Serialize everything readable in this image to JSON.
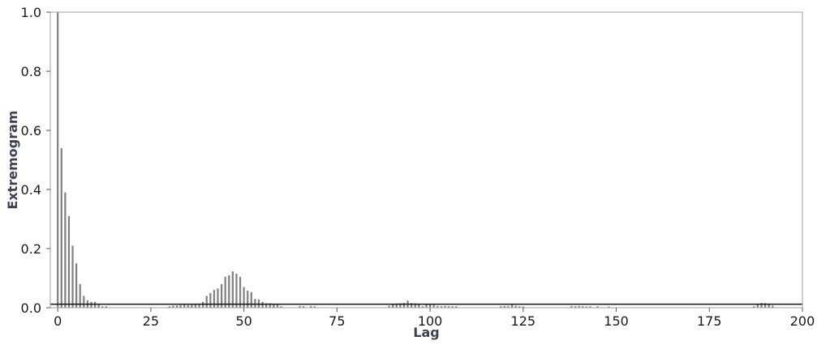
{
  "chart_data": {
    "type": "bar",
    "title": "",
    "xlabel": "Lag",
    "ylabel": "Extremogram",
    "xlim": [
      -2,
      200
    ],
    "ylim": [
      0,
      1.0
    ],
    "x_ticks": [
      0,
      25,
      50,
      75,
      100,
      125,
      150,
      175,
      200
    ],
    "y_ticks": [
      0.0,
      0.2,
      0.4,
      0.6,
      0.8,
      1.0
    ],
    "x_tick_labels": [
      "0",
      "25",
      "50",
      "75",
      "100",
      "125",
      "150",
      "175",
      "200"
    ],
    "y_tick_labels": [
      "0.0",
      "0.2",
      "0.4",
      "0.6",
      "0.8",
      "1.0"
    ],
    "grid": false,
    "threshold_line": 0.012,
    "bar_color": "#808080",
    "threshold_color": "#111111",
    "series": [
      {
        "lags": [
          0,
          1,
          2,
          3,
          4,
          5,
          6,
          7,
          8,
          9,
          10,
          11,
          12,
          13,
          30,
          31,
          32,
          33,
          34,
          35,
          36,
          37,
          38,
          39,
          40,
          41,
          42,
          43,
          44,
          45,
          46,
          47,
          48,
          49,
          50,
          51,
          52,
          53,
          54,
          55,
          56,
          57,
          58,
          59,
          60,
          65,
          66,
          68,
          69,
          89,
          90,
          91,
          92,
          93,
          94,
          95,
          96,
          97,
          98,
          99,
          100,
          101,
          102,
          103,
          104,
          105,
          106,
          107,
          119,
          120,
          121,
          122,
          123,
          124,
          125,
          138,
          139,
          140,
          141,
          142,
          143,
          145,
          148,
          187,
          188,
          189,
          190,
          191,
          192
        ],
        "values": [
          1.0,
          0.54,
          0.39,
          0.31,
          0.21,
          0.15,
          0.08,
          0.04,
          0.025,
          0.02,
          0.02,
          0.01,
          0.005,
          0.005,
          0.005,
          0.007,
          0.008,
          0.009,
          0.01,
          0.009,
          0.01,
          0.012,
          0.014,
          0.02,
          0.04,
          0.05,
          0.06,
          0.065,
          0.08,
          0.105,
          0.11,
          0.123,
          0.115,
          0.105,
          0.07,
          0.058,
          0.053,
          0.03,
          0.028,
          0.02,
          0.015,
          0.015,
          0.013,
          0.01,
          0.005,
          0.006,
          0.005,
          0.006,
          0.005,
          0.007,
          0.012,
          0.014,
          0.015,
          0.017,
          0.024,
          0.016,
          0.015,
          0.013,
          0.005,
          0.012,
          0.012,
          0.01,
          0.006,
          0.005,
          0.006,
          0.005,
          0.005,
          0.005,
          0.005,
          0.006,
          0.006,
          0.01,
          0.007,
          0.005,
          0.004,
          0.006,
          0.005,
          0.006,
          0.005,
          0.004,
          0.005,
          0.005,
          0.004,
          0.005,
          0.012,
          0.016,
          0.016,
          0.012,
          0.007
        ]
      }
    ]
  }
}
